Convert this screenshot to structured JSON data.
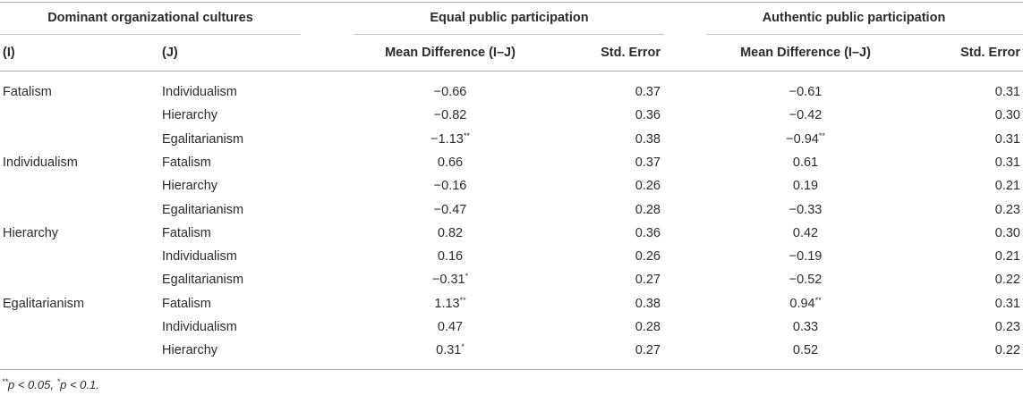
{
  "table": {
    "group_headers": {
      "cultures": "Dominant organizational cultures",
      "equal": "Equal public participation",
      "authentic": "Authentic public participation"
    },
    "col_headers": {
      "i": "(I)",
      "j": "(J)",
      "equal_mean": "Mean Difference (I–J)",
      "equal_se": "Std. Error",
      "auth_mean": "Mean Difference (I–J)",
      "auth_se": "Std. Error"
    },
    "rows": [
      {
        "i": "Fatalism",
        "j": "Individualism",
        "em": "−0.66",
        "em_sup": "",
        "es": "0.37",
        "am": "−0.61",
        "am_sup": "",
        "as": "0.31"
      },
      {
        "i": "",
        "j": "Hierarchy",
        "em": "−0.82",
        "em_sup": "",
        "es": "0.36",
        "am": "−0.42",
        "am_sup": "",
        "as": "0.30"
      },
      {
        "i": "",
        "j": "Egalitarianism",
        "em": "−1.13",
        "em_sup": "**",
        "es": "0.38",
        "am": "−0.94",
        "am_sup": "**",
        "as": "0.31"
      },
      {
        "i": "Individualism",
        "j": "Fatalism",
        "em": "0.66",
        "em_sup": "",
        "es": "0.37",
        "am": "0.61",
        "am_sup": "",
        "as": "0.31"
      },
      {
        "i": "",
        "j": "Hierarchy",
        "em": "−0.16",
        "em_sup": "",
        "es": "0.26",
        "am": "0.19",
        "am_sup": "",
        "as": "0.21"
      },
      {
        "i": "",
        "j": "Egalitarianism",
        "em": "−0.47",
        "em_sup": "",
        "es": "0.28",
        "am": "−0.33",
        "am_sup": "",
        "as": "0.23"
      },
      {
        "i": "Hierarchy",
        "j": "Fatalism",
        "em": "0.82",
        "em_sup": "",
        "es": "0.36",
        "am": "0.42",
        "am_sup": "",
        "as": "0.30"
      },
      {
        "i": "",
        "j": "Individualism",
        "em": "0.16",
        "em_sup": "",
        "es": "0.26",
        "am": "−0.19",
        "am_sup": "",
        "as": "0.21"
      },
      {
        "i": "",
        "j": "Egalitarianism",
        "em": "−0.31",
        "em_sup": "*",
        "es": "0.27",
        "am": "−0.52",
        "am_sup": "",
        "as": "0.22"
      },
      {
        "i": "Egalitarianism",
        "j": "Fatalism",
        "em": "1.13",
        "em_sup": "**",
        "es": "0.38",
        "am": "0.94",
        "am_sup": "**",
        "as": "0.31"
      },
      {
        "i": "",
        "j": "Individualism",
        "em": "0.47",
        "em_sup": "",
        "es": "0.28",
        "am": "0.33",
        "am_sup": "",
        "as": "0.23"
      },
      {
        "i": "",
        "j": "Hierarchy",
        "em": "0.31",
        "em_sup": "*",
        "es": "0.27",
        "am": "0.52",
        "am_sup": "",
        "as": "0.22"
      }
    ],
    "footnote": {
      "sup1": "**",
      "text1": "p < 0.05, ",
      "sup2": "*",
      "text2": "p < 0.1."
    }
  }
}
